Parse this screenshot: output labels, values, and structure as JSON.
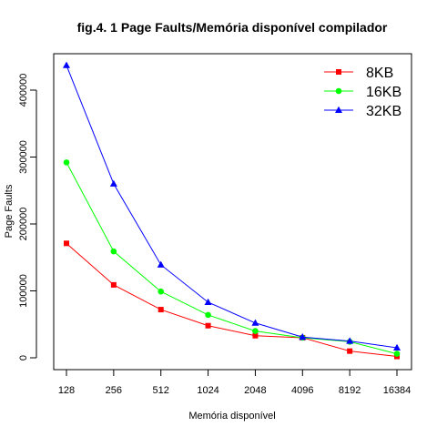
{
  "chart_data": {
    "type": "line",
    "title": "fig.4. 1 Page Faults/Memória disponível  compilador",
    "xlabel": "Memória disponível",
    "ylabel": "Page Faults",
    "categories": [
      "128",
      "256",
      "512",
      "1024",
      "2048",
      "4096",
      "8192",
      "16384"
    ],
    "yticks": [
      "0",
      "100000",
      "200000",
      "300000",
      "400000"
    ],
    "ylim": [
      0,
      440000
    ],
    "legend_position": "top-right",
    "grid": false,
    "series": [
      {
        "name": "8KB",
        "color": "#ff0000",
        "marker": "square",
        "values": [
          171000,
          109000,
          72000,
          48000,
          33000,
          30000,
          10000,
          2000
        ]
      },
      {
        "name": "16KB",
        "color": "#00ff00",
        "marker": "circle",
        "values": [
          292000,
          159000,
          99000,
          64000,
          40000,
          30000,
          24000,
          6000
        ]
      },
      {
        "name": "32KB",
        "color": "#0000ff",
        "marker": "triangle",
        "values": [
          437000,
          260000,
          139000,
          83000,
          52000,
          31000,
          25000,
          15000
        ]
      }
    ]
  }
}
